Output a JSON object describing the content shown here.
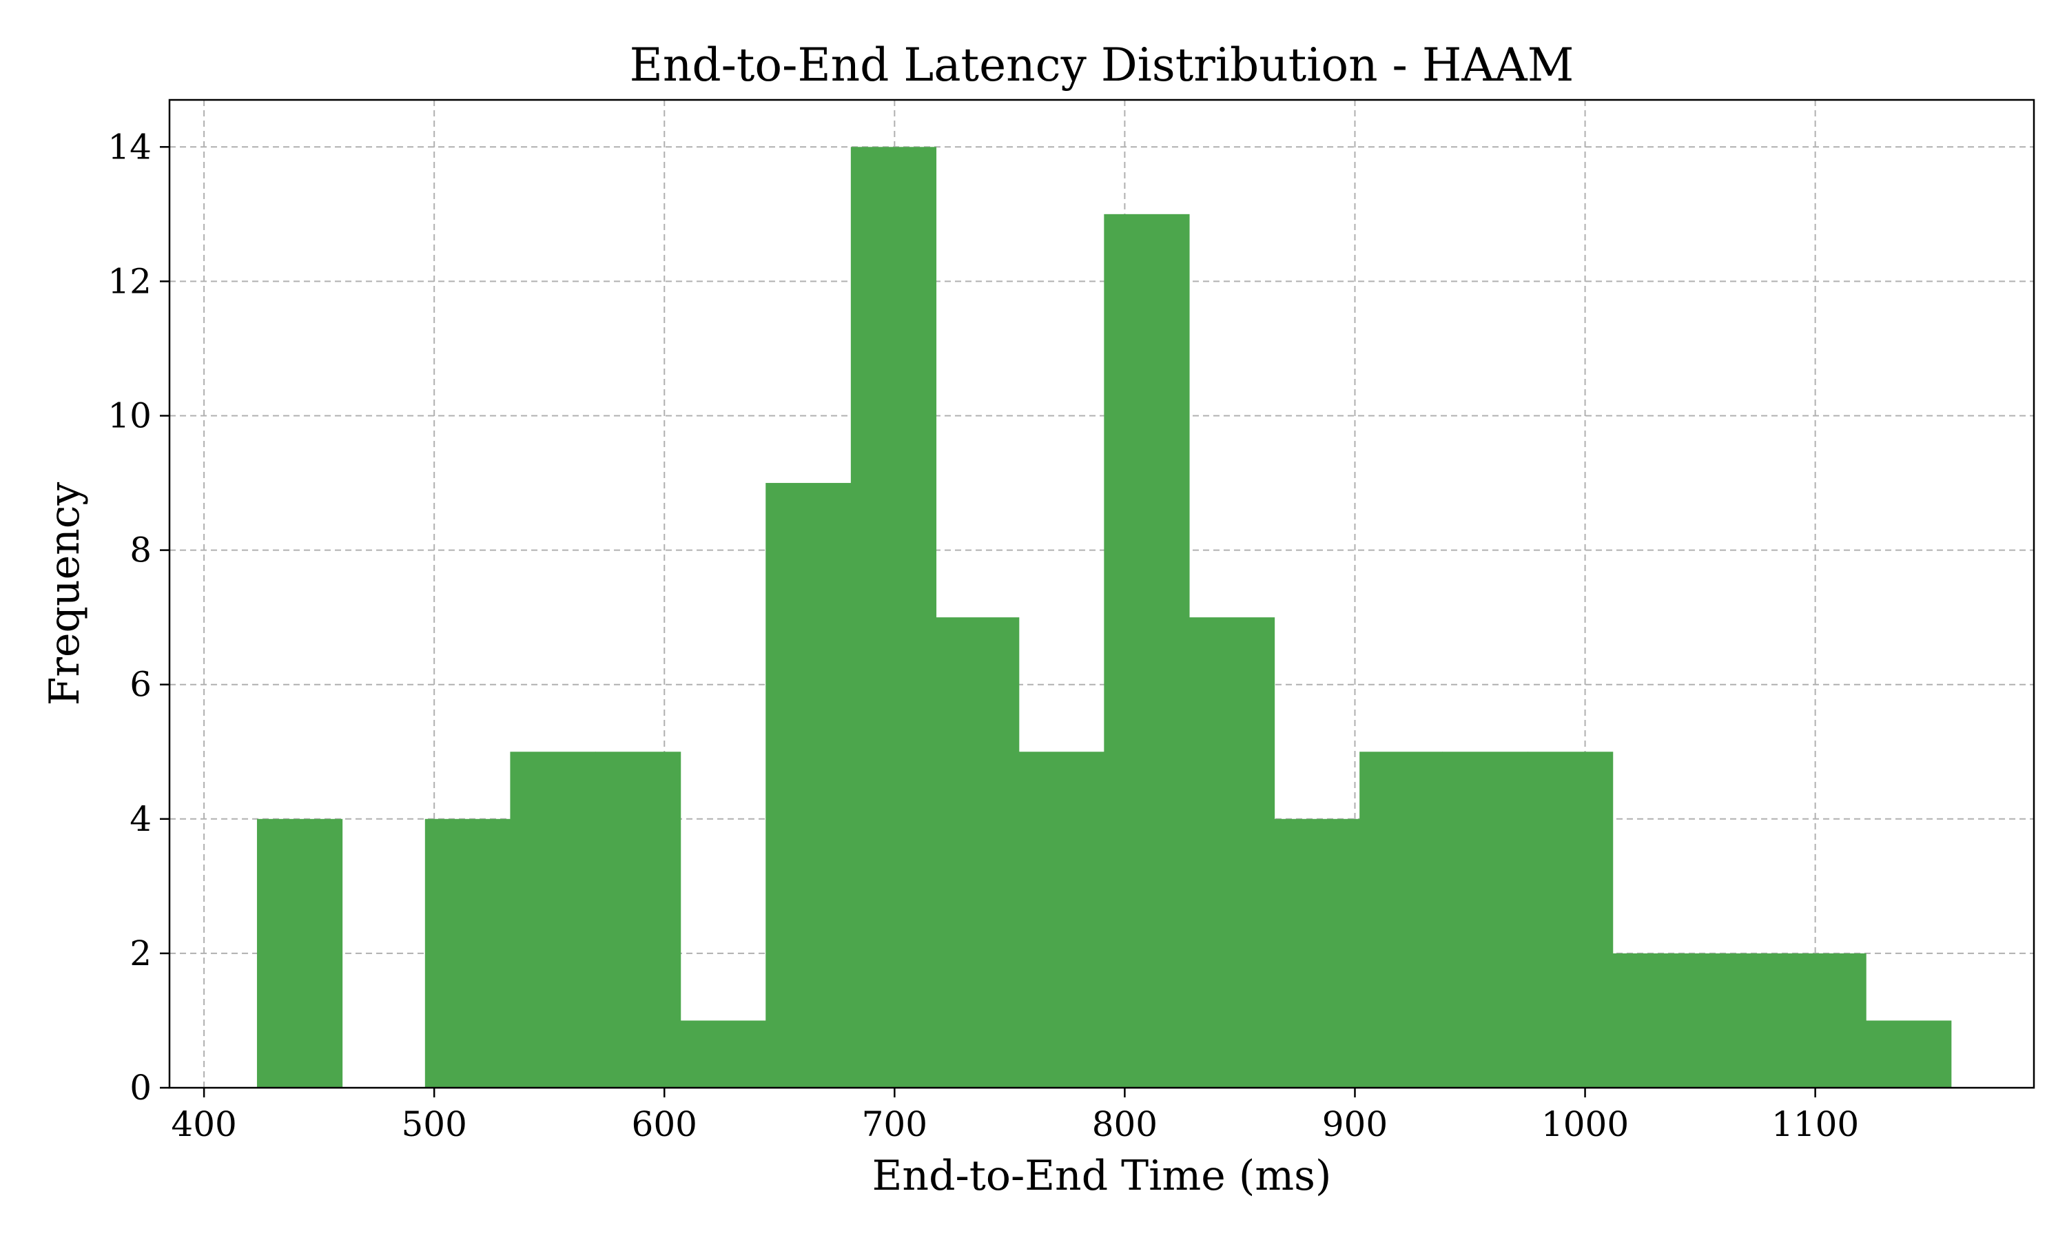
{
  "chart_data": {
    "type": "bar",
    "title": "End-to-End Latency Distribution - HAAM",
    "xlabel": "End-to-End Time (ms)",
    "ylabel": "Frequency",
    "xlim": [
      385,
      1195
    ],
    "ylim": [
      0,
      14.7
    ],
    "xticks": [
      400,
      500,
      600,
      700,
      800,
      900,
      1000,
      1100
    ],
    "yticks": [
      0,
      2,
      4,
      6,
      8,
      10,
      12,
      14
    ],
    "grid": true,
    "bar_color": "#4ca64c",
    "bin_edges": [
      423,
      460,
      496,
      533,
      570,
      607,
      644,
      681,
      718,
      754,
      791,
      828,
      865,
      902,
      938,
      975,
      1012,
      1049,
      1086,
      1122,
      1159
    ],
    "values": [
      4,
      0,
      4,
      5,
      5,
      1,
      9,
      14,
      7,
      5,
      13,
      7,
      4,
      5,
      5,
      5,
      2,
      2,
      2,
      1
    ]
  }
}
